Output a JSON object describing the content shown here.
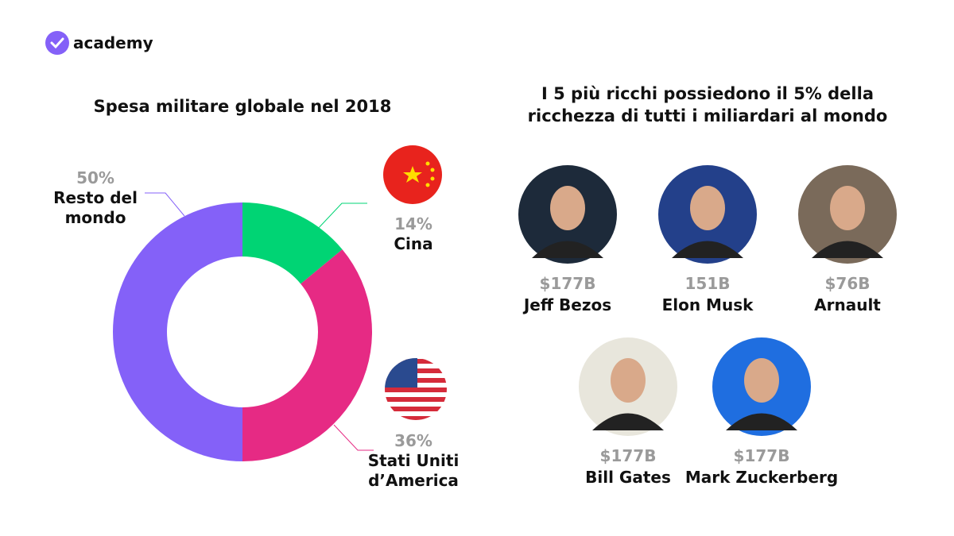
{
  "logo": {
    "text": "academy"
  },
  "chart_data": {
    "type": "donut",
    "title": "Spesa militare globale nel 2018",
    "categories": [
      "Cina",
      "Stati Uniti d’America",
      "Resto del mondo"
    ],
    "values": [
      14,
      36,
      50
    ],
    "value_labels": [
      "14%",
      "36%",
      "50%"
    ],
    "colors": [
      "#00d474",
      "#e62a84",
      "#8461f8"
    ]
  },
  "billionaires": {
    "title": "I 5 più ricchi possiedono il 5% della ricchezza di tutti i miliardari al mondo",
    "people": [
      {
        "name": "Jeff Bezos",
        "wealth": "$177B"
      },
      {
        "name": "Elon Musk",
        "wealth": "151B"
      },
      {
        "name": "Arnault",
        "wealth": "$76B"
      },
      {
        "name": "Bill Gates",
        "wealth": "$177B"
      },
      {
        "name": "Mark Zuckerberg",
        "wealth": "$177B"
      }
    ]
  }
}
